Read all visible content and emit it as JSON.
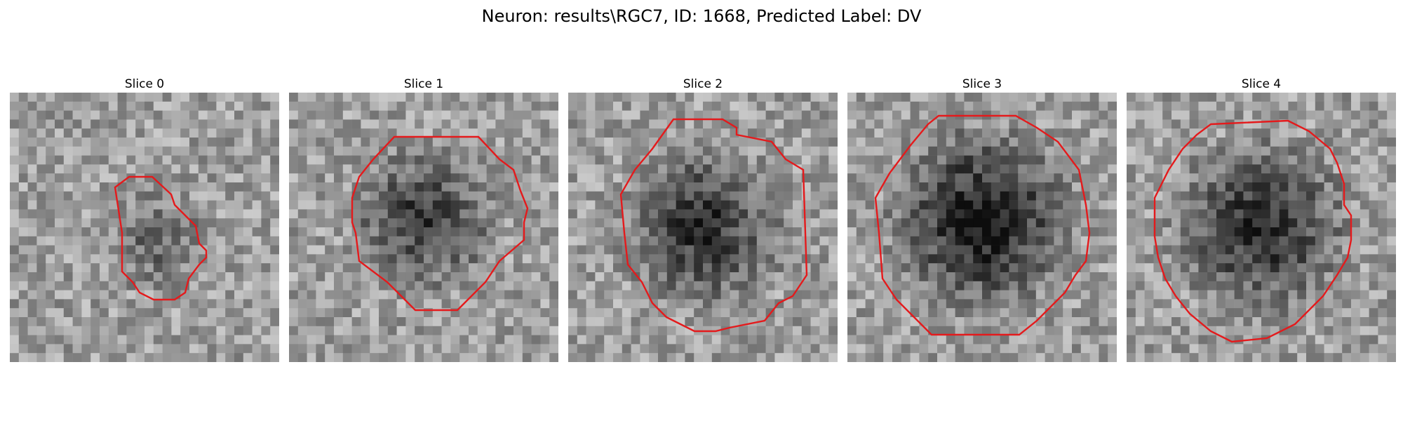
{
  "figure": {
    "title": "Neuron: results\\RGC7, ID: 1668, Predicted Label: DV"
  },
  "panels": [
    {
      "label": "Slice 0",
      "outline_color": "#e41a1c"
    },
    {
      "label": "Slice 1",
      "outline_color": "#e41a1c"
    },
    {
      "label": "Slice 2",
      "outline_color": "#e41a1c"
    },
    {
      "label": "Slice 3",
      "outline_color": "#e41a1c"
    },
    {
      "label": "Slice 4",
      "outline_color": "#e41a1c"
    }
  ]
}
